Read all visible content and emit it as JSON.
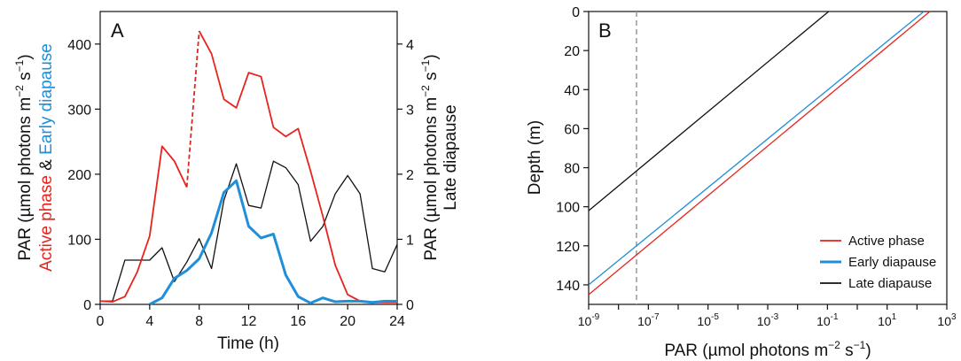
{
  "chart_data": [
    {
      "type": "line",
      "panel_label": "A",
      "xlabel": "Time (h)",
      "xlim": [
        0,
        24
      ],
      "x_ticks": [
        0,
        4,
        8,
        12,
        16,
        20,
        24
      ],
      "ylim_left": [
        0,
        450
      ],
      "y_ticks_left": [
        0,
        100,
        200,
        300,
        400
      ],
      "ylim_right": [
        0,
        4.5
      ],
      "y_ticks_right": [
        0,
        1,
        2,
        3,
        4
      ],
      "ylabel_left": {
        "line1": "PAR (µmol photons m",
        "line1_sup": "−2",
        "line1_mid": " s",
        "line1_sup2": "−1",
        "line1_end": ")",
        "line2_part1": "Active phase",
        "line2_part2": " & ",
        "line2_part3": "Early diapause"
      },
      "ylabel_right": {
        "line1": "PAR (µmol photons m",
        "line1_sup": "−2",
        "line1_mid": " s",
        "line1_sup2": "−1",
        "line1_end": ")",
        "line2": "Late diapause"
      },
      "series": [
        {
          "id": "active",
          "color": "#e8231d",
          "axis": "left",
          "x": [
            0,
            1,
            2,
            3,
            4,
            5,
            6,
            7,
            8,
            9,
            10,
            11,
            12,
            13,
            14,
            15,
            16,
            17,
            18,
            19,
            20,
            21,
            22,
            23,
            24
          ],
          "y": [
            5,
            4,
            12,
            50,
            105,
            243,
            220,
            180,
            420,
            385,
            315,
            302,
            356,
            350,
            272,
            258,
            270,
            205,
            135,
            60,
            15,
            5,
            3,
            3,
            3
          ],
          "dashed_segment": [
            7,
            8
          ]
        },
        {
          "id": "early",
          "color": "#1e8fd8",
          "axis": "left",
          "x": [
            4,
            5,
            6,
            7,
            8,
            9,
            10,
            11,
            12,
            13,
            14,
            15,
            16,
            17,
            18,
            19,
            20,
            21,
            22,
            23,
            24
          ],
          "y": [
            0,
            10,
            40,
            52,
            70,
            110,
            172,
            190,
            120,
            102,
            108,
            45,
            12,
            2,
            10,
            4,
            5,
            5,
            3,
            5,
            5
          ]
        },
        {
          "id": "late",
          "color": "#111111",
          "axis": "right",
          "x": [
            0,
            1,
            2,
            3,
            4,
            5,
            6,
            7,
            8,
            9,
            10,
            11,
            12,
            13,
            14,
            15,
            16,
            17,
            18,
            19,
            20,
            21,
            22,
            23,
            24
          ],
          "y": [
            0.05,
            0.05,
            0.68,
            0.68,
            0.68,
            0.87,
            0.35,
            0.65,
            1.01,
            0.55,
            1.6,
            2.16,
            1.52,
            1.48,
            2.2,
            2.1,
            1.84,
            0.97,
            1.2,
            1.7,
            1.98,
            1.7,
            0.55,
            0.5,
            0.92
          ]
        }
      ]
    },
    {
      "type": "line",
      "panel_label": "B",
      "xscale": "log",
      "xlabel_main": "PAR (µmol photons m",
      "xlabel_sup": "−2",
      "xlabel_mid": " s",
      "xlabel_sup2": "−1",
      "xlabel_end": ")",
      "xlim_log10": [
        -9,
        3
      ],
      "x_ticks": [
        {
          "exp": -9,
          "mant": "10",
          "sup": "-9"
        },
        {
          "exp": -7,
          "mant": "10",
          "sup": "-7"
        },
        {
          "exp": -5,
          "mant": "10",
          "sup": "-5"
        },
        {
          "exp": -3,
          "mant": "10",
          "sup": "-3"
        },
        {
          "exp": -1,
          "mant": "10",
          "sup": "-1"
        },
        {
          "exp": 1,
          "mant": "10",
          "sup": "1"
        },
        {
          "exp": 3,
          "mant": "10",
          "sup": "3"
        }
      ],
      "ylabel": "Depth (m)",
      "ylim": [
        150,
        0
      ],
      "y_ticks": [
        0,
        20,
        40,
        60,
        80,
        100,
        120,
        140
      ],
      "vline_x": 4e-08,
      "legend_position": "bottom-right",
      "series": [
        {
          "id": "active",
          "name": "Active phase",
          "color": "#e8231d",
          "x": [
            1e-09,
            270
          ],
          "y": [
            145,
            0
          ]
        },
        {
          "id": "early",
          "name": "Early diapause",
          "color": "#1e8fd8",
          "x": [
            1e-09,
            170
          ],
          "y": [
            140,
            0
          ]
        },
        {
          "id": "late",
          "name": "Late diapause",
          "color": "#111111",
          "x": [
            1e-09,
            0.11
          ],
          "y": [
            102,
            0
          ]
        }
      ]
    }
  ]
}
